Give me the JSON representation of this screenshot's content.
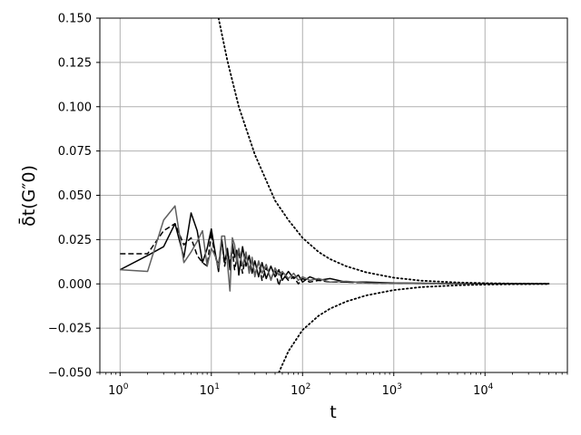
{
  "chart_data": {
    "type": "line",
    "xlabel": "t",
    "ylabel": "δ̄t(G″0)",
    "xscale": "log",
    "xlim": [
      0.6,
      80000
    ],
    "ylim": [
      -0.05,
      0.15
    ],
    "grid": true,
    "x_ticks": [
      1,
      10,
      100,
      1000,
      10000
    ],
    "x_tick_labels": [
      {
        "base": "10",
        "exp": "0"
      },
      {
        "base": "10",
        "exp": "1"
      },
      {
        "base": "10",
        "exp": "2"
      },
      {
        "base": "10",
        "exp": "3"
      },
      {
        "base": "10",
        "exp": "4"
      }
    ],
    "y_ticks": [
      -0.05,
      -0.025,
      0.0,
      0.025,
      0.05,
      0.075,
      0.1,
      0.125,
      0.15
    ],
    "y_tick_labels": [
      "−0.050",
      "−0.025",
      "0.000",
      "0.025",
      "0.050",
      "0.075",
      "0.100",
      "0.125",
      "0.150"
    ],
    "series": [
      {
        "style": "solid",
        "color": "#000000",
        "points": [
          [
            1,
            0.008
          ],
          [
            2,
            0.016
          ],
          [
            3,
            0.021
          ],
          [
            4,
            0.034
          ],
          [
            5,
            0.015
          ],
          [
            6,
            0.04
          ],
          [
            7,
            0.03
          ],
          [
            8,
            0.012
          ],
          [
            9,
            0.02
          ],
          [
            10,
            0.031
          ],
          [
            11,
            0.018
          ],
          [
            12,
            0.007
          ],
          [
            13,
            0.025
          ],
          [
            14,
            0.012
          ],
          [
            15,
            0.02
          ],
          [
            16,
            0.008
          ],
          [
            17,
            0.023
          ],
          [
            18,
            0.015
          ],
          [
            19,
            0.019
          ],
          [
            20,
            0.005
          ],
          [
            22,
            0.021
          ],
          [
            24,
            0.01
          ],
          [
            26,
            0.016
          ],
          [
            28,
            0.006
          ],
          [
            30,
            0.013
          ],
          [
            33,
            0.004
          ],
          [
            36,
            0.012
          ],
          [
            40,
            0.003
          ],
          [
            45,
            0.01
          ],
          [
            50,
            0.004
          ],
          [
            55,
            0.008
          ],
          [
            60,
            0.002
          ],
          [
            70,
            0.007
          ],
          [
            80,
            0.003
          ],
          [
            90,
            0.005
          ],
          [
            100,
            0.001
          ],
          [
            120,
            0.004
          ],
          [
            150,
            0.002
          ],
          [
            200,
            0.003
          ],
          [
            300,
            0.001
          ],
          [
            500,
            0.001
          ],
          [
            1000,
            0.0005
          ],
          [
            5000,
            0.0002
          ],
          [
            50000,
            0.0001
          ]
        ]
      },
      {
        "style": "dashed",
        "color": "#000000",
        "points": [
          [
            1,
            0.017
          ],
          [
            2,
            0.017
          ],
          [
            3,
            0.03
          ],
          [
            4,
            0.034
          ],
          [
            5,
            0.022
          ],
          [
            6,
            0.026
          ],
          [
            7,
            0.016
          ],
          [
            8,
            0.012
          ],
          [
            9,
            0.01
          ],
          [
            10,
            0.029
          ],
          [
            11,
            0.015
          ],
          [
            12,
            0.011
          ],
          [
            13,
            0.025
          ],
          [
            14,
            0.01
          ],
          [
            15,
            0.018
          ],
          [
            16,
            0.012
          ],
          [
            17,
            0.02
          ],
          [
            18,
            0.008
          ],
          [
            19,
            0.014
          ],
          [
            20,
            0.018
          ],
          [
            22,
            0.006
          ],
          [
            24,
            0.017
          ],
          [
            26,
            0.008
          ],
          [
            28,
            0.013
          ],
          [
            30,
            0.005
          ],
          [
            33,
            0.012
          ],
          [
            36,
            0.002
          ],
          [
            40,
            0.009
          ],
          [
            45,
            0.003
          ],
          [
            50,
            0.008
          ],
          [
            55,
            -0.001
          ],
          [
            60,
            0.006
          ],
          [
            70,
            0.002
          ],
          [
            80,
            0.004
          ],
          [
            90,
            0.0
          ],
          [
            100,
            0.003
          ],
          [
            120,
            0.001
          ],
          [
            150,
            0.002
          ],
          [
            200,
            0.001
          ],
          [
            300,
            0.001
          ],
          [
            500,
            0.0005
          ],
          [
            1000,
            0.0003
          ],
          [
            5000,
            0.0001
          ],
          [
            50000,
            0.0
          ]
        ]
      },
      {
        "style": "solid",
        "color": "#606060",
        "points": [
          [
            1,
            0.008
          ],
          [
            2,
            0.007
          ],
          [
            3,
            0.036
          ],
          [
            4,
            0.044
          ],
          [
            5,
            0.012
          ],
          [
            6,
            0.018
          ],
          [
            7,
            0.024
          ],
          [
            8,
            0.03
          ],
          [
            9,
            0.01
          ],
          [
            10,
            0.02
          ],
          [
            11,
            0.016
          ],
          [
            12,
            0.009
          ],
          [
            13,
            0.027
          ],
          [
            14,
            0.027
          ],
          [
            15,
            0.012
          ],
          [
            16,
            -0.004
          ],
          [
            17,
            0.026
          ],
          [
            18,
            0.022
          ],
          [
            19,
            0.012
          ],
          [
            20,
            0.02
          ],
          [
            22,
            0.01
          ],
          [
            24,
            0.018
          ],
          [
            26,
            0.006
          ],
          [
            28,
            0.015
          ],
          [
            30,
            0.004
          ],
          [
            33,
            0.013
          ],
          [
            36,
            0.006
          ],
          [
            40,
            0.011
          ],
          [
            45,
            0.002
          ],
          [
            50,
            0.009
          ],
          [
            55,
            0.005
          ],
          [
            60,
            0.007
          ],
          [
            70,
            0.003
          ],
          [
            80,
            0.006
          ],
          [
            90,
            0.002
          ],
          [
            100,
            0.004
          ],
          [
            120,
            0.002
          ],
          [
            150,
            0.003
          ],
          [
            200,
            0.001
          ],
          [
            300,
            0.0015
          ],
          [
            500,
            0.0005
          ],
          [
            1000,
            0.0003
          ],
          [
            5000,
            0.0001
          ],
          [
            50000,
            0.0
          ]
        ]
      },
      {
        "style": "dotted",
        "color": "#000000",
        "points": [
          [
            12,
            0.15
          ],
          [
            15,
            0.126
          ],
          [
            20,
            0.1
          ],
          [
            30,
            0.073
          ],
          [
            50,
            0.047
          ],
          [
            70,
            0.036
          ],
          [
            100,
            0.026
          ],
          [
            150,
            0.018
          ],
          [
            200,
            0.014
          ],
          [
            300,
            0.01
          ],
          [
            500,
            0.0065
          ],
          [
            1000,
            0.0035
          ],
          [
            2000,
            0.0018
          ],
          [
            5000,
            0.0008
          ],
          [
            10000,
            0.0004
          ],
          [
            20000,
            0.0002
          ],
          [
            50000,
            0.0001
          ]
        ]
      },
      {
        "style": "dotted",
        "color": "#000000",
        "points": [
          [
            55,
            -0.05
          ],
          [
            70,
            -0.038
          ],
          [
            100,
            -0.026
          ],
          [
            150,
            -0.018
          ],
          [
            200,
            -0.014
          ],
          [
            300,
            -0.01
          ],
          [
            500,
            -0.0065
          ],
          [
            1000,
            -0.0035
          ],
          [
            2000,
            -0.0018
          ],
          [
            5000,
            -0.0008
          ],
          [
            10000,
            -0.0004
          ],
          [
            20000,
            -0.0002
          ],
          [
            50000,
            -0.0001
          ]
        ]
      }
    ]
  }
}
